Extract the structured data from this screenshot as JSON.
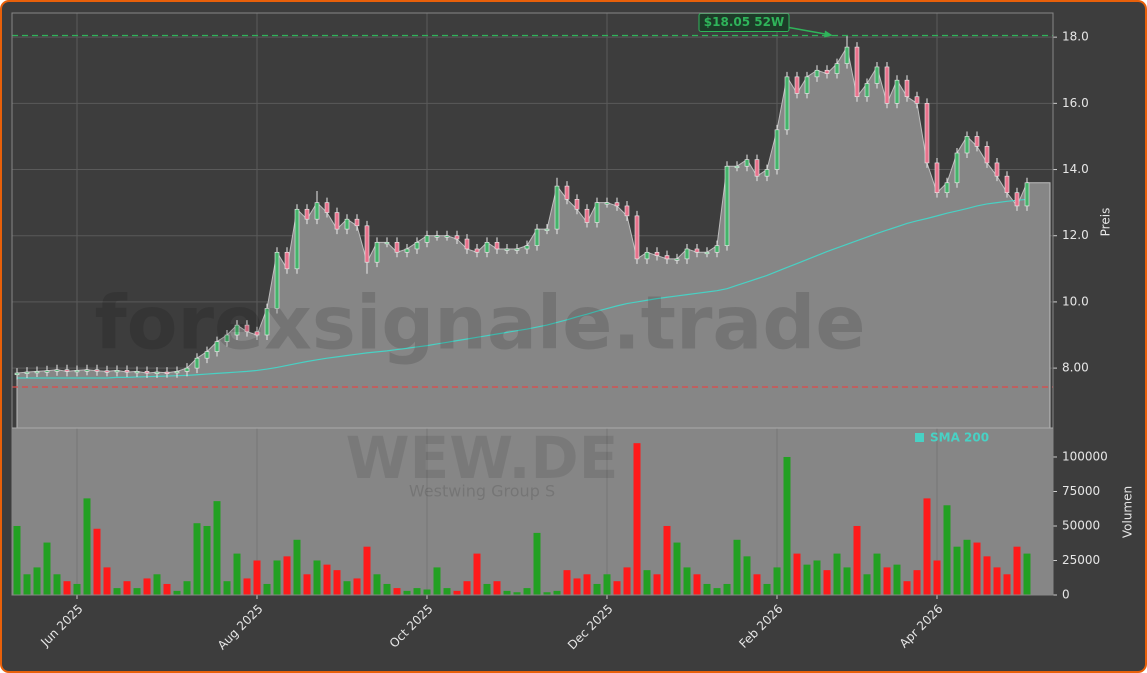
{
  "chart_data": {
    "type": "candlestick",
    "watermark": "forexsignale.trade",
    "symbol": "WEW.DE",
    "company": "Westwing Group S",
    "y_label": "Preis",
    "up_color": "#45b36b",
    "down_color": "#e8728c",
    "area_color": "#868686",
    "ylim": [
      6.19,
      18.73
    ],
    "yticks": [
      {
        "value": 8,
        "label": "8.00"
      },
      {
        "value": 10,
        "label": "10.0"
      },
      {
        "value": 12,
        "label": "12.0"
      },
      {
        "value": 14,
        "label": "14.0"
      },
      {
        "value": 16,
        "label": "16.0"
      },
      {
        "value": 18,
        "label": "18.0"
      }
    ],
    "grid": true,
    "categories": [
      null,
      null,
      null,
      null,
      null,
      null,
      "Jun 2025",
      null,
      null,
      null,
      null,
      null,
      null,
      null,
      null,
      null,
      null,
      null,
      null,
      null,
      null,
      null,
      null,
      null,
      "Aug 2025",
      null,
      null,
      null,
      null,
      null,
      null,
      null,
      null,
      null,
      null,
      null,
      null,
      null,
      null,
      null,
      null,
      "Oct 2025",
      null,
      null,
      null,
      null,
      null,
      null,
      null,
      null,
      null,
      null,
      null,
      null,
      null,
      null,
      null,
      null,
      null,
      "Dec 2025",
      null,
      null,
      null,
      null,
      null,
      null,
      null,
      null,
      null,
      null,
      null,
      null,
      null,
      null,
      null,
      null,
      "Feb 2026",
      null,
      null,
      null,
      null,
      null,
      null,
      null,
      null,
      null,
      null,
      null,
      null,
      null,
      null,
      null,
      "Apr 2026",
      null,
      null,
      null,
      null,
      null,
      null,
      null,
      null,
      null
    ],
    "open": [
      7.8,
      7.85,
      7.88,
      7.9,
      7.92,
      7.95,
      7.9,
      7.93,
      7.95,
      7.92,
      7.9,
      7.93,
      7.88,
      7.9,
      7.85,
      7.88,
      7.86,
      7.9,
      8.0,
      8.3,
      8.5,
      8.8,
      9.0,
      9.3,
      9.1,
      9.0,
      9.8,
      11.5,
      11.0,
      12.8,
      12.5,
      13.0,
      12.7,
      12.2,
      12.5,
      12.3,
      11.2,
      11.8,
      11.8,
      11.5,
      11.6,
      11.8,
      12.0,
      12.0,
      12.0,
      11.9,
      11.6,
      11.5,
      11.8,
      11.6,
      11.6,
      11.6,
      11.7,
      12.2,
      12.2,
      13.5,
      13.1,
      12.8,
      12.4,
      13.0,
      13.0,
      12.9,
      12.6,
      11.3,
      11.5,
      11.4,
      11.3,
      11.3,
      11.6,
      11.5,
      11.5,
      11.7,
      14.1,
      14.1,
      14.3,
      13.8,
      14.0,
      15.2,
      16.8,
      16.3,
      16.8,
      17.0,
      16.9,
      17.2,
      17.7,
      16.2,
      16.6,
      17.1,
      16.0,
      16.7,
      16.2,
      16.0,
      14.2,
      13.3,
      13.6,
      14.5,
      15.0,
      14.7,
      14.2,
      13.8,
      13.3,
      12.9
    ],
    "high": [
      8.0,
      8.03,
      8.05,
      8.07,
      8.1,
      8.1,
      8.08,
      8.1,
      8.1,
      8.07,
      8.08,
      8.08,
      8.05,
      8.05,
      8.03,
      8.03,
      8.05,
      8.15,
      8.45,
      8.65,
      8.95,
      9.15,
      9.45,
      9.45,
      9.25,
      9.95,
      11.65,
      11.65,
      12.95,
      12.95,
      13.35,
      13.15,
      12.85,
      12.65,
      12.65,
      12.45,
      11.95,
      11.95,
      11.95,
      11.75,
      11.95,
      12.15,
      12.15,
      12.15,
      12.15,
      12.05,
      11.75,
      11.95,
      11.95,
      11.75,
      11.75,
      11.85,
      12.35,
      12.35,
      13.75,
      13.65,
      13.25,
      12.95,
      13.15,
      13.15,
      13.15,
      13.05,
      12.75,
      11.65,
      11.65,
      11.55,
      11.45,
      11.75,
      11.75,
      11.65,
      11.85,
      14.25,
      14.25,
      14.45,
      14.45,
      14.15,
      15.35,
      16.95,
      16.95,
      16.95,
      17.15,
      17.15,
      17.35,
      18.05,
      17.85,
      16.75,
      17.25,
      17.25,
      16.85,
      16.85,
      16.35,
      16.15,
      14.35,
      13.75,
      14.65,
      15.15,
      15.15,
      14.85,
      14.35,
      13.95,
      13.45,
      13.75
    ],
    "low": [
      7.65,
      7.7,
      7.73,
      7.75,
      7.77,
      7.75,
      7.75,
      7.78,
      7.77,
      7.75,
      7.75,
      7.73,
      7.73,
      7.7,
      7.7,
      7.71,
      7.71,
      7.75,
      7.85,
      8.15,
      8.35,
      8.65,
      8.85,
      8.95,
      8.85,
      8.85,
      9.65,
      10.85,
      10.85,
      12.35,
      12.35,
      12.55,
      12.05,
      12.05,
      12.15,
      10.85,
      11.05,
      11.65,
      11.35,
      11.35,
      11.45,
      11.65,
      11.85,
      11.85,
      11.75,
      11.45,
      11.35,
      11.35,
      11.45,
      11.45,
      11.45,
      11.45,
      11.55,
      12.05,
      12.05,
      12.95,
      12.65,
      12.25,
      12.25,
      12.85,
      12.75,
      12.45,
      11.15,
      11.15,
      11.25,
      11.15,
      11.15,
      11.15,
      11.35,
      11.35,
      11.35,
      11.55,
      13.95,
      13.95,
      13.65,
      13.65,
      13.85,
      15.05,
      16.15,
      16.15,
      16.65,
      16.75,
      16.75,
      17.05,
      16.05,
      16.05,
      16.45,
      15.85,
      15.85,
      16.05,
      15.85,
      14.05,
      13.15,
      13.15,
      13.45,
      14.35,
      14.55,
      14.05,
      13.65,
      13.15,
      12.75,
      12.75
    ],
    "close": [
      7.85,
      7.88,
      7.9,
      7.92,
      7.95,
      7.9,
      7.93,
      7.95,
      7.92,
      7.9,
      7.93,
      7.88,
      7.9,
      7.85,
      7.88,
      7.86,
      7.9,
      8.0,
      8.3,
      8.5,
      8.8,
      9.0,
      9.3,
      9.1,
      9.0,
      9.8,
      11.5,
      11.0,
      12.8,
      12.5,
      13.0,
      12.7,
      12.2,
      12.5,
      12.3,
      11.2,
      11.8,
      11.8,
      11.5,
      11.6,
      11.8,
      12.0,
      12.0,
      12.0,
      11.9,
      11.6,
      11.5,
      11.8,
      11.6,
      11.6,
      11.6,
      11.7,
      12.2,
      12.2,
      13.5,
      13.1,
      12.8,
      12.4,
      13.0,
      13.0,
      12.9,
      12.6,
      11.3,
      11.5,
      11.4,
      11.3,
      11.3,
      11.6,
      11.5,
      11.5,
      11.7,
      14.1,
      14.1,
      14.3,
      13.8,
      14.0,
      15.2,
      16.8,
      16.3,
      16.8,
      17.0,
      16.9,
      17.2,
      17.7,
      16.2,
      16.6,
      17.1,
      16.0,
      16.7,
      16.2,
      16.0,
      14.2,
      13.3,
      13.6,
      14.5,
      15.0,
      14.7,
      14.2,
      13.8,
      13.3,
      12.9,
      13.6
    ],
    "sma": {
      "name": "SMA 200",
      "color": "#48d1c4",
      "values": [
        7.7,
        7.7,
        7.7,
        7.7,
        7.7,
        7.7,
        7.7,
        7.7,
        7.7,
        7.7,
        7.72,
        7.72,
        7.73,
        7.74,
        7.75,
        7.76,
        7.77,
        7.78,
        7.8,
        7.82,
        7.84,
        7.86,
        7.88,
        7.9,
        7.93,
        7.97,
        8.02,
        8.08,
        8.14,
        8.2,
        8.25,
        8.3,
        8.34,
        8.38,
        8.42,
        8.46,
        8.49,
        8.52,
        8.56,
        8.6,
        8.64,
        8.68,
        8.73,
        8.78,
        8.83,
        8.88,
        8.93,
        8.98,
        9.03,
        9.08,
        9.13,
        9.18,
        9.24,
        9.3,
        9.38,
        9.46,
        9.55,
        9.63,
        9.72,
        9.8,
        9.88,
        9.95,
        10.0,
        10.05,
        10.1,
        10.14,
        10.18,
        10.22,
        10.26,
        10.3,
        10.34,
        10.4,
        10.5,
        10.6,
        10.7,
        10.8,
        10.92,
        11.04,
        11.16,
        11.28,
        11.4,
        11.52,
        11.63,
        11.74,
        11.85,
        11.96,
        12.07,
        12.17,
        12.27,
        12.37,
        12.45,
        12.52,
        12.6,
        12.68,
        12.75,
        12.82,
        12.9,
        12.96,
        13.0,
        13.04,
        13.07,
        13.1
      ]
    },
    "high_line": {
      "value": 18.05,
      "label": "$18.05 52W",
      "color": "#2fb45a"
    },
    "low_line": {
      "value": 7.43,
      "color": "#e04848"
    },
    "volume": {
      "label": "Volumen",
      "up_color": "#22a022",
      "down_color": "#ff1a1a",
      "ylim": [
        0,
        121000
      ],
      "yticks": [
        0,
        25000,
        50000,
        75000,
        100000
      ],
      "values": [
        50000,
        15000,
        20000,
        38000,
        15000,
        10000,
        8000,
        70000,
        48000,
        20000,
        5000,
        10000,
        5000,
        12000,
        15000,
        8000,
        3000,
        10000,
        52000,
        50000,
        68000,
        10000,
        30000,
        12000,
        25000,
        8000,
        25000,
        28000,
        40000,
        15000,
        25000,
        22000,
        18000,
        10000,
        12000,
        35000,
        15000,
        8000,
        5000,
        3000,
        5000,
        4000,
        20000,
        5000,
        3000,
        10000,
        30000,
        8000,
        10000,
        3000,
        2000,
        5000,
        45000,
        2000,
        3000,
        18000,
        12000,
        15000,
        8000,
        15000,
        10000,
        20000,
        110000,
        18000,
        15000,
        50000,
        38000,
        20000,
        15000,
        8000,
        5000,
        8000,
        40000,
        28000,
        15000,
        8000,
        20000,
        100000,
        30000,
        22000,
        25000,
        18000,
        30000,
        20000,
        50000,
        15000,
        30000,
        20000,
        22000,
        10000,
        18000,
        70000,
        25000,
        65000,
        35000,
        40000,
        38000,
        28000,
        20000,
        15000,
        35000,
        30000
      ]
    }
  }
}
